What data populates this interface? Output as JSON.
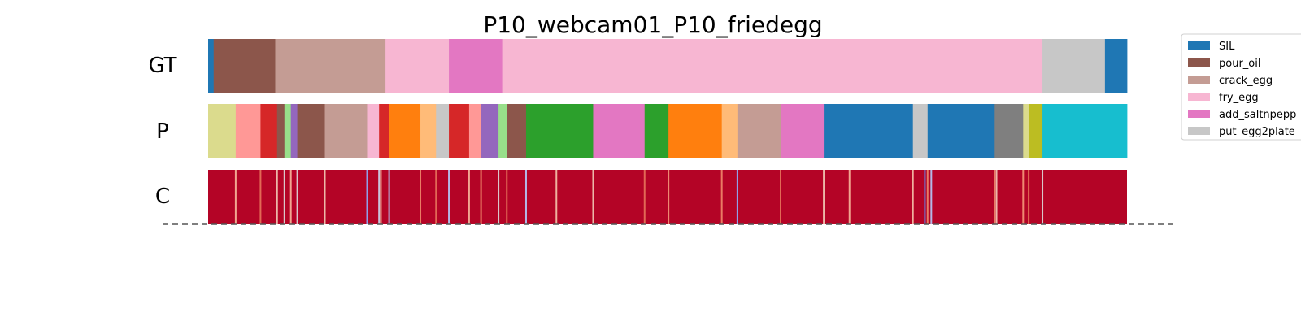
{
  "chart_data": {
    "type": "segmentation_timeline",
    "title": "P10_webcam01_P10_friedegg",
    "x_range": [
      0,
      1
    ],
    "rows": [
      {
        "label": "GT",
        "segments": [
          {
            "start": 0.0,
            "end": 0.006,
            "label": "SIL",
            "color": "#1f77b4"
          },
          {
            "start": 0.006,
            "end": 0.073,
            "label": "pour_oil",
            "color": "#8c564b"
          },
          {
            "start": 0.073,
            "end": 0.193,
            "label": "crack_egg",
            "color": "#c49c94"
          },
          {
            "start": 0.193,
            "end": 0.262,
            "label": "fry_egg",
            "color": "#f7b6d2"
          },
          {
            "start": 0.262,
            "end": 0.32,
            "label": "add_saltnpepper",
            "color": "#e377c2"
          },
          {
            "start": 0.32,
            "end": 0.908,
            "label": "fry_egg",
            "color": "#f7b6d2"
          },
          {
            "start": 0.908,
            "end": 0.976,
            "label": "put_egg2plate",
            "color": "#c7c7c7"
          },
          {
            "start": 0.976,
            "end": 1.0,
            "label": "SIL",
            "color": "#1f77b4"
          }
        ]
      },
      {
        "label": "P",
        "segments": [
          {
            "start": 0.0,
            "end": 0.03,
            "color": "#dbdb8d"
          },
          {
            "start": 0.03,
            "end": 0.057,
            "color": "#ff9896"
          },
          {
            "start": 0.057,
            "end": 0.075,
            "color": "#d62728"
          },
          {
            "start": 0.075,
            "end": 0.083,
            "color": "#8c564b"
          },
          {
            "start": 0.083,
            "end": 0.09,
            "color": "#98df8a"
          },
          {
            "start": 0.09,
            "end": 0.097,
            "color": "#9467bd"
          },
          {
            "start": 0.097,
            "end": 0.127,
            "color": "#8c564b"
          },
          {
            "start": 0.127,
            "end": 0.173,
            "color": "#c49c94"
          },
          {
            "start": 0.173,
            "end": 0.186,
            "color": "#f7b6d2"
          },
          {
            "start": 0.186,
            "end": 0.197,
            "color": "#d62728"
          },
          {
            "start": 0.197,
            "end": 0.231,
            "color": "#ff7f0e"
          },
          {
            "start": 0.231,
            "end": 0.248,
            "color": "#ffbb78"
          },
          {
            "start": 0.248,
            "end": 0.262,
            "color": "#c7c7c7"
          },
          {
            "start": 0.262,
            "end": 0.284,
            "color": "#d62728"
          },
          {
            "start": 0.284,
            "end": 0.297,
            "color": "#ff9896"
          },
          {
            "start": 0.297,
            "end": 0.316,
            "color": "#9467bd"
          },
          {
            "start": 0.316,
            "end": 0.325,
            "color": "#98df8a"
          },
          {
            "start": 0.325,
            "end": 0.346,
            "color": "#8c564b"
          },
          {
            "start": 0.346,
            "end": 0.419,
            "color": "#2ca02c"
          },
          {
            "start": 0.419,
            "end": 0.475,
            "color": "#e377c2"
          },
          {
            "start": 0.475,
            "end": 0.501,
            "color": "#2ca02c"
          },
          {
            "start": 0.501,
            "end": 0.559,
            "color": "#ff7f0e"
          },
          {
            "start": 0.559,
            "end": 0.576,
            "color": "#ffbb78"
          },
          {
            "start": 0.576,
            "end": 0.623,
            "color": "#c49c94"
          },
          {
            "start": 0.623,
            "end": 0.67,
            "color": "#e377c2"
          },
          {
            "start": 0.67,
            "end": 0.767,
            "color": "#1f77b4"
          },
          {
            "start": 0.767,
            "end": 0.783,
            "color": "#c7c7c7"
          },
          {
            "start": 0.783,
            "end": 0.856,
            "color": "#1f77b4"
          },
          {
            "start": 0.856,
            "end": 0.887,
            "color": "#7f7f7f"
          },
          {
            "start": 0.887,
            "end": 0.893,
            "color": "#dbdb8d"
          },
          {
            "start": 0.893,
            "end": 0.908,
            "color": "#bcbd22"
          },
          {
            "start": 0.908,
            "end": 1.0,
            "color": "#17becf"
          }
        ]
      },
      {
        "label": "C",
        "base_color": "#b40426",
        "highlights": [
          {
            "pos": 0.03,
            "color": "#f7b89c"
          },
          {
            "pos": 0.057,
            "color": "#e7745b"
          },
          {
            "pos": 0.075,
            "color": "#f2cbb7"
          },
          {
            "pos": 0.083,
            "color": "#dddcdc"
          },
          {
            "pos": 0.09,
            "color": "#f7b89c"
          },
          {
            "pos": 0.097,
            "color": "#dddcdc"
          },
          {
            "pos": 0.127,
            "color": "#f2cbb7"
          },
          {
            "pos": 0.173,
            "color": "#8db0fe"
          },
          {
            "pos": 0.186,
            "color": "#cad8ef"
          },
          {
            "pos": 0.188,
            "color": "#f7b89c"
          },
          {
            "pos": 0.197,
            "color": "#b2ccfb"
          },
          {
            "pos": 0.231,
            "color": "#f08a6c"
          },
          {
            "pos": 0.248,
            "color": "#e7745b"
          },
          {
            "pos": 0.262,
            "color": "#b2ccfb"
          },
          {
            "pos": 0.284,
            "color": "#f7b89c"
          },
          {
            "pos": 0.297,
            "color": "#f08a6c"
          },
          {
            "pos": 0.316,
            "color": "#dddcdc"
          },
          {
            "pos": 0.325,
            "color": "#e7745b"
          },
          {
            "pos": 0.346,
            "color": "#b2ccfb"
          },
          {
            "pos": 0.379,
            "color": "#f5c4ac"
          },
          {
            "pos": 0.419,
            "color": "#f2cbb7"
          },
          {
            "pos": 0.475,
            "color": "#e7745b"
          },
          {
            "pos": 0.501,
            "color": "#f4987a"
          },
          {
            "pos": 0.559,
            "color": "#f08a6c"
          },
          {
            "pos": 0.576,
            "color": "#8db0fe"
          },
          {
            "pos": 0.623,
            "color": "#e7745b"
          },
          {
            "pos": 0.67,
            "color": "#f2cbb7"
          },
          {
            "pos": 0.698,
            "color": "#f7b89c"
          },
          {
            "pos": 0.767,
            "color": "#f5c4ac"
          },
          {
            "pos": 0.78,
            "color": "#6788ee"
          },
          {
            "pos": 0.783,
            "color": "#f08a6c"
          },
          {
            "pos": 0.787,
            "color": "#b2ccfb"
          },
          {
            "pos": 0.856,
            "color": "#f08a6c"
          },
          {
            "pos": 0.858,
            "color": "#f2cbb7"
          },
          {
            "pos": 0.887,
            "color": "#f4987a"
          },
          {
            "pos": 0.893,
            "color": "#e7745b"
          },
          {
            "pos": 0.908,
            "color": "#dddcdc"
          }
        ]
      }
    ],
    "legend": {
      "placement": "top-right",
      "entries": [
        {
          "label": "SIL",
          "color": "#1f77b4"
        },
        {
          "label": "pour_oil",
          "color": "#8c564b"
        },
        {
          "label": "crack_egg",
          "color": "#c49c94"
        },
        {
          "label": "fry_egg",
          "color": "#f7b6d2"
        },
        {
          "label": "add_saltnpepp",
          "color": "#e377c2"
        },
        {
          "label": "put_egg2plate",
          "color": "#c7c7c7"
        }
      ]
    },
    "baseline_style": "dashed"
  }
}
